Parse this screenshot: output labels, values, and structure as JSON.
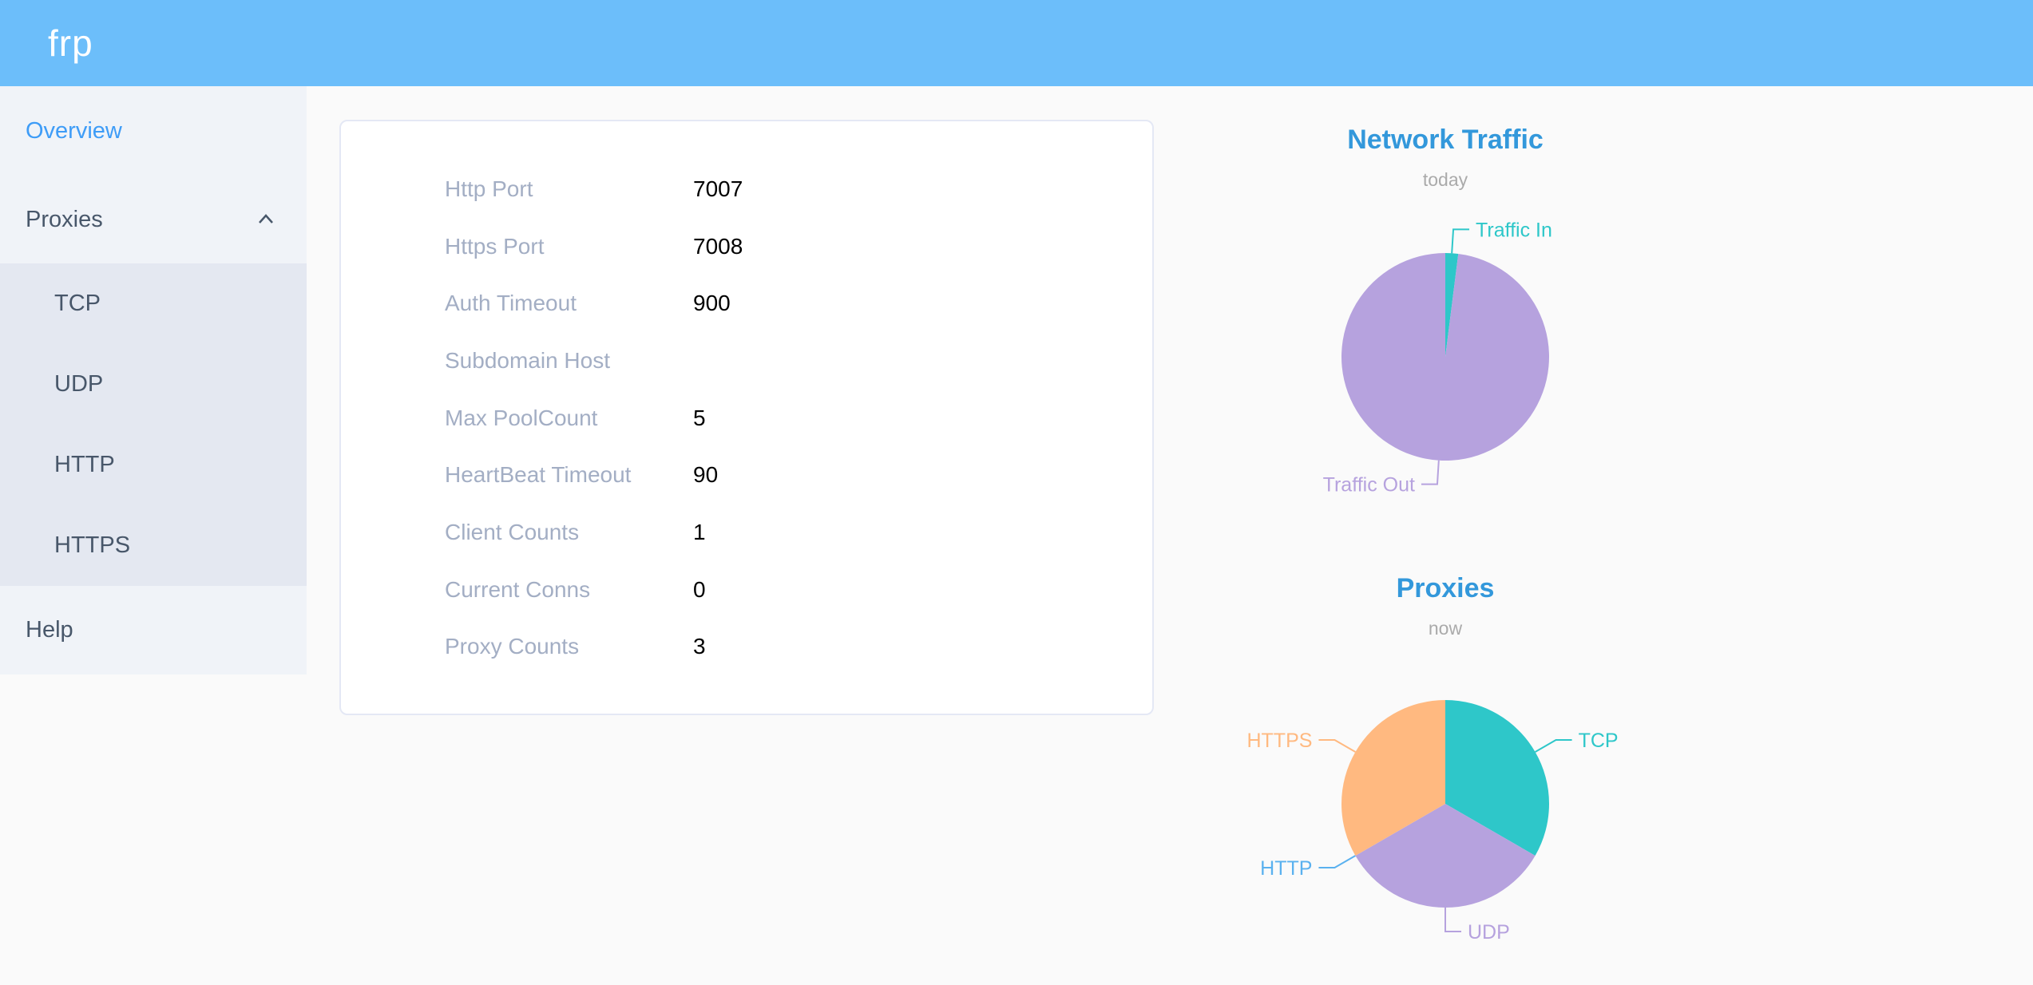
{
  "header": {
    "logo": "frp"
  },
  "sidebar": {
    "items": [
      {
        "label": "Overview",
        "active": true
      },
      {
        "label": "Proxies",
        "expanded": true,
        "children": [
          "TCP",
          "UDP",
          "HTTP",
          "HTTPS"
        ]
      },
      {
        "label": "Help"
      }
    ]
  },
  "server_info": {
    "rows": [
      {
        "label": "Http Port",
        "value": "7007"
      },
      {
        "label": "Https Port",
        "value": "7008"
      },
      {
        "label": "Auth Timeout",
        "value": "900"
      },
      {
        "label": "Subdomain Host",
        "value": ""
      },
      {
        "label": "Max PoolCount",
        "value": "5"
      },
      {
        "label": "HeartBeat Timeout",
        "value": "90"
      },
      {
        "label": "Client Counts",
        "value": "1"
      },
      {
        "label": "Current Conns",
        "value": "0"
      },
      {
        "label": "Proxy Counts",
        "value": "3"
      }
    ]
  },
  "chart_data": [
    {
      "type": "pie",
      "title": "Network Traffic",
      "subtitle": "today",
      "legend_position": "none",
      "series": [
        {
          "name": "Traffic In",
          "value": 2,
          "color": "#2ec7c9"
        },
        {
          "name": "Traffic Out",
          "value": 98,
          "color": "#b6a2de"
        }
      ]
    },
    {
      "type": "pie",
      "title": "Proxies",
      "subtitle": "now",
      "legend_position": "none",
      "series": [
        {
          "name": "TCP",
          "value": 1,
          "color": "#2ec7c9"
        },
        {
          "name": "UDP",
          "value": 1,
          "color": "#b6a2de"
        },
        {
          "name": "HTTP",
          "value": 0,
          "color": "#5ab1ef"
        },
        {
          "name": "HTTPS",
          "value": 1,
          "color": "#ffb980"
        }
      ]
    }
  ],
  "colors": {
    "header_bg": "#6cbefa",
    "sidebar_bg": "#f0f3f8",
    "submenu_bg": "#e4e8f1",
    "menu_text": "#48576a",
    "menu_active": "#3e9cf7",
    "card_label": "#a3aec4",
    "chart_title": "#3398db",
    "chart_subtitle": "#aaaaaa",
    "teal": "#2ec7c9",
    "purple": "#b6a2de",
    "blue": "#5ab1ef",
    "orange": "#ffb980"
  }
}
